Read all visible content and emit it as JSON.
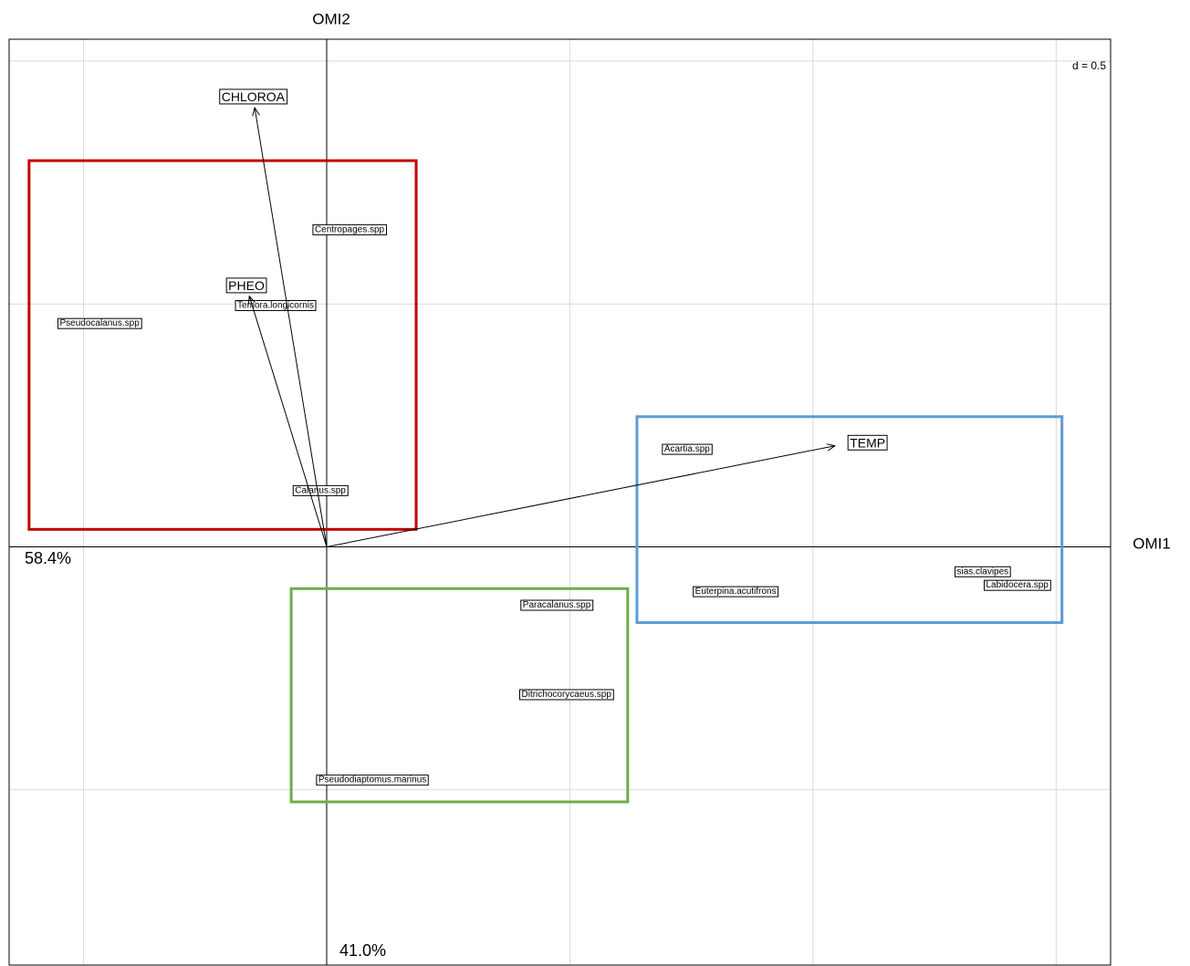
{
  "chart_data": {
    "type": "biplot",
    "x_label": "OMI1",
    "y_label": "OMI2",
    "x_inertia": "58.4%",
    "y_inertia": "41.0%",
    "scale_label": "d = 0.5",
    "xlim": [
      -0.653,
      1.612
    ],
    "ylim": [
      -0.861,
      1.045
    ],
    "xticks": [
      -0.5,
      0,
      0.5,
      1,
      1.5
    ],
    "yticks": [
      -0.5,
      0,
      0.5,
      1
    ],
    "grid": true,
    "variables": {
      "names": [
        "CHLOROA",
        "PHEO",
        "TEMP"
      ],
      "x": [
        -0.148,
        -0.159,
        1.045
      ],
      "y": [
        0.904,
        0.516,
        0.208
      ]
    },
    "species": {
      "names": [
        "Centropages.spp",
        "Temora.longicornis",
        "Pseudocalanus.spp",
        "Calanus.spp",
        "Acartia.spp",
        "Euterpina.acutifrons",
        "sias.clavipes",
        "Labidocera.spp",
        "Paracalanus.spp",
        "Ditrichocorycaeus.spp",
        "Pseudodiaptomus.marinus"
      ],
      "x": [
        0.047,
        -0.105,
        -0.467,
        -0.013,
        0.741,
        0.841,
        1.349,
        1.42,
        0.473,
        0.493,
        0.094
      ],
      "y": [
        0.653,
        0.497,
        0.46,
        0.116,
        0.201,
        -0.092,
        -0.051,
        -0.079,
        -0.12,
        -0.304,
        -0.48
      ]
    },
    "groups": [
      {
        "color": "#c00000",
        "x": [
          -0.612,
          0.184
        ],
        "y": [
          0.036,
          0.795
        ]
      },
      {
        "color": "#5b9bd5",
        "x": [
          0.638,
          1.512
        ],
        "y": [
          -0.156,
          0.268
        ]
      },
      {
        "color": "#70ad47",
        "x": [
          -0.073,
          0.619
        ],
        "y": [
          -0.525,
          -0.086
        ]
      }
    ]
  }
}
